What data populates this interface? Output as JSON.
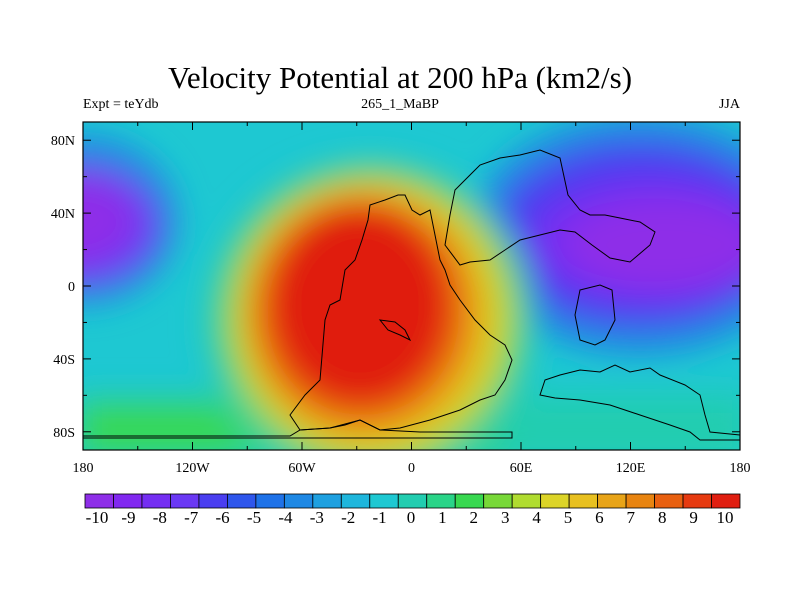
{
  "header": {
    "title": "Velocity Potential at 200 hPa (km2/s)",
    "left": "Expt = teYdb",
    "center": "265_1_MaBP",
    "right": "JJA"
  },
  "chart_data": {
    "type": "heatmap",
    "title": "Velocity Potential at 200 hPa (km2/s)",
    "x_ticks": [
      "180",
      "120W",
      "60W",
      "0",
      "60E",
      "120E",
      "180"
    ],
    "y_ticks": [
      "80N",
      "40N",
      "0",
      "40S",
      "80S"
    ],
    "xlim": [
      -180,
      180
    ],
    "ylim": [
      -90,
      90
    ],
    "colorbar": {
      "labels": [
        "-10",
        "-9",
        "-8",
        "-7",
        "-6",
        "-5",
        "-4",
        "-3",
        "-2",
        "-1",
        "0",
        "1",
        "2",
        "3",
        "4",
        "5",
        "6",
        "7",
        "8",
        "9",
        "10"
      ],
      "colors": [
        "#8e2ee8",
        "#8128f0",
        "#742ef2",
        "#6a38f4",
        "#4a3ef0",
        "#2e56ec",
        "#1e72e8",
        "#1e88e4",
        "#1ea0e0",
        "#1eb6dc",
        "#1ec8d2",
        "#22cdb0",
        "#2ad488",
        "#38d850",
        "#78d838",
        "#b0dc30",
        "#dcd428",
        "#e8c020",
        "#e8a418",
        "#e88410",
        "#e86010",
        "#e63a10",
        "#e01e10"
      ]
    },
    "features": [
      {
        "kind": "max",
        "lon": -25,
        "lat": 0,
        "value": 10
      },
      {
        "kind": "min",
        "lon": 160,
        "lat": 10,
        "value": -10
      },
      {
        "kind": "min",
        "lon": -175,
        "lat": 30,
        "value": -9
      }
    ]
  }
}
